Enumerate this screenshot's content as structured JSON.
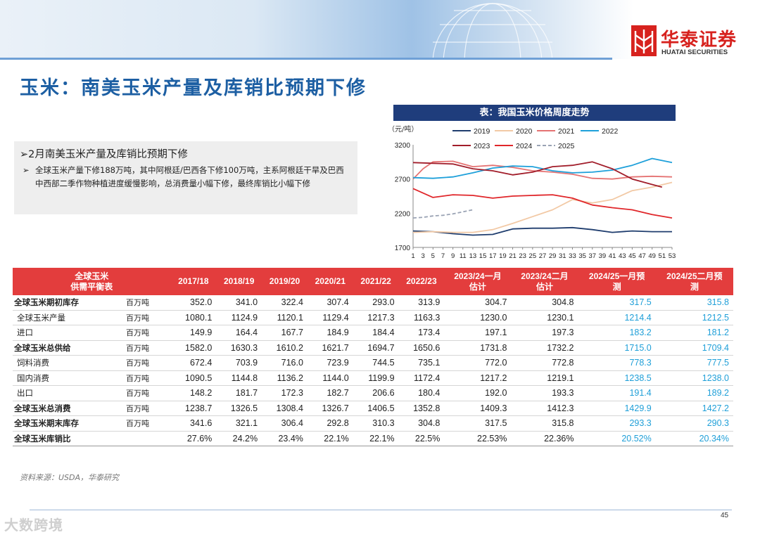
{
  "header": {
    "logo_cn": "华泰证券",
    "logo_en": "HUATAI SECURITIES",
    "brand_color": "#d7221e"
  },
  "title": "玉米：南美玉米产量及库销比预期下修",
  "bullets": {
    "main": "2月南美玉米产量及库销比预期下修",
    "sub": "全球玉米产量下修188万吨，其中阿根廷/巴西各下修100万吨，主系阿根廷干旱及巴西中西部二季作物种植进度缓慢影响，总消费量小幅下修，最终库销比小幅下修"
  },
  "chart": {
    "title": "表：我国玉米价格周度走势",
    "unit": "（元/吨）"
  },
  "chart_data": {
    "type": "line",
    "title": "表：我国玉米价格周度走势",
    "ylabel": "（元/吨）",
    "ylim": [
      1700,
      3200
    ],
    "yticks": [
      1700,
      2200,
      2700,
      3200
    ],
    "xlim": [
      1,
      53
    ],
    "xticks": [
      1,
      3,
      5,
      7,
      9,
      11,
      13,
      15,
      17,
      19,
      21,
      23,
      25,
      27,
      29,
      31,
      33,
      35,
      37,
      39,
      41,
      43,
      45,
      47,
      49,
      51,
      53
    ],
    "legend": "top",
    "series": [
      {
        "name": "2019",
        "color": "#1f3d6e",
        "dash": false,
        "x": [
          1,
          5,
          9,
          13,
          17,
          21,
          25,
          29,
          33,
          37,
          41,
          45,
          49,
          53
        ],
        "y": [
          1940,
          1930,
          1900,
          1880,
          1890,
          1970,
          1980,
          1980,
          1990,
          1960,
          1920,
          1940,
          1930,
          1930
        ]
      },
      {
        "name": "2020",
        "color": "#f2c9a5",
        "dash": false,
        "x": [
          1,
          5,
          9,
          13,
          17,
          21,
          25,
          29,
          33,
          37,
          41,
          45,
          49,
          53
        ],
        "y": [
          1920,
          1930,
          1920,
          1920,
          1960,
          2050,
          2150,
          2250,
          2400,
          2350,
          2400,
          2530,
          2580,
          2650
        ]
      },
      {
        "name": "2021",
        "color": "#e57373",
        "dash": false,
        "x": [
          1,
          3,
          5,
          9,
          13,
          17,
          21,
          25,
          29,
          33,
          37,
          41,
          45,
          49,
          53
        ],
        "y": [
          2700,
          2850,
          2950,
          2960,
          2880,
          2900,
          2870,
          2820,
          2800,
          2770,
          2710,
          2700,
          2730,
          2740,
          2730
        ]
      },
      {
        "name": "2022",
        "color": "#1ea0da",
        "dash": false,
        "x": [
          1,
          5,
          9,
          13,
          17,
          21,
          25,
          29,
          33,
          37,
          41,
          45,
          49,
          53
        ],
        "y": [
          2720,
          2710,
          2730,
          2790,
          2860,
          2890,
          2880,
          2820,
          2790,
          2800,
          2830,
          2900,
          3000,
          2940
        ]
      },
      {
        "name": "2023",
        "color": "#a11d2a",
        "dash": false,
        "x": [
          1,
          5,
          9,
          13,
          17,
          21,
          25,
          29,
          33,
          37,
          41,
          45,
          49,
          51
        ],
        "y": [
          2940,
          2930,
          2920,
          2850,
          2820,
          2760,
          2800,
          2880,
          2900,
          2950,
          2850,
          2700,
          2620,
          2580
        ]
      },
      {
        "name": "2024",
        "color": "#e0262a",
        "dash": false,
        "x": [
          1,
          5,
          9,
          13,
          17,
          21,
          25,
          29,
          33,
          37,
          41,
          45,
          49,
          53
        ],
        "y": [
          2560,
          2430,
          2470,
          2460,
          2420,
          2450,
          2460,
          2470,
          2420,
          2320,
          2280,
          2250,
          2180,
          2130
        ]
      },
      {
        "name": "2025",
        "color": "#9aa3b4",
        "dash": true,
        "x": [
          1,
          3,
          5,
          7,
          9,
          11,
          13
        ],
        "y": [
          2130,
          2140,
          2160,
          2170,
          2190,
          2220,
          2250
        ]
      }
    ]
  },
  "table": {
    "header_first": "全球玉米\n供需平衡表",
    "columns": [
      "2017/18",
      "2018/19",
      "2019/20",
      "2020/21",
      "2021/22",
      "2022/23",
      "2023/24一月\n估计",
      "2023/24二月\n估计",
      "2024/25一月预\n测",
      "2024/25二月预\n测"
    ],
    "rows": [
      {
        "label": "全球玉米期初库存",
        "bold": true,
        "unit": "百万吨",
        "values": [
          "352.0",
          "341.0",
          "322.4",
          "307.4",
          "293.0",
          "313.9",
          "304.7",
          "304.8",
          "317.5",
          "315.8"
        ]
      },
      {
        "label": "全球玉米产量",
        "bold": false,
        "unit": "百万吨",
        "values": [
          "1080.1",
          "1124.9",
          "1120.1",
          "1129.4",
          "1217.3",
          "1163.3",
          "1230.0",
          "1230.1",
          "1214.4",
          "1212.5"
        ]
      },
      {
        "label": "进口",
        "bold": false,
        "unit": "百万吨",
        "values": [
          "149.9",
          "164.4",
          "167.7",
          "184.9",
          "184.4",
          "173.4",
          "197.1",
          "197.3",
          "183.2",
          "181.2"
        ]
      },
      {
        "label": "全球玉米总供给",
        "bold": true,
        "unit": "百万吨",
        "values": [
          "1582.0",
          "1630.3",
          "1610.2",
          "1621.7",
          "1694.7",
          "1650.6",
          "1731.8",
          "1732.2",
          "1715.0",
          "1709.4"
        ]
      },
      {
        "label": "饲料消费",
        "bold": false,
        "unit": "百万吨",
        "values": [
          "672.4",
          "703.9",
          "716.0",
          "723.9",
          "744.5",
          "735.1",
          "772.0",
          "772.8",
          "778.3",
          "777.5"
        ]
      },
      {
        "label": "国内消费",
        "bold": false,
        "unit": "百万吨",
        "values": [
          "1090.5",
          "1144.8",
          "1136.2",
          "1144.0",
          "1199.9",
          "1172.4",
          "1217.2",
          "1219.1",
          "1238.5",
          "1238.0"
        ]
      },
      {
        "label": "出口",
        "bold": false,
        "unit": "百万吨",
        "values": [
          "148.2",
          "181.7",
          "172.3",
          "182.7",
          "206.6",
          "180.4",
          "192.0",
          "193.3",
          "191.4",
          "189.2"
        ]
      },
      {
        "label": "全球玉米总消费",
        "bold": true,
        "unit": "百万吨",
        "values": [
          "1238.7",
          "1326.5",
          "1308.4",
          "1326.7",
          "1406.5",
          "1352.8",
          "1409.3",
          "1412.3",
          "1429.9",
          "1427.2"
        ]
      },
      {
        "label": "全球玉米期末库存",
        "bold": true,
        "unit": "百万吨",
        "values": [
          "341.6",
          "321.1",
          "306.4",
          "292.8",
          "310.3",
          "304.8",
          "317.5",
          "315.8",
          "293.3",
          "290.3"
        ]
      },
      {
        "label": "全球玉米库销比",
        "bold": true,
        "unit": "",
        "values": [
          "27.6%",
          "24.2%",
          "23.4%",
          "22.1%",
          "22.1%",
          "22.5%",
          "22.53%",
          "22.36%",
          "20.52%",
          "20.34%"
        ]
      }
    ],
    "header_color": "#e33d3d",
    "forecast_color": "#1f9fd8"
  },
  "source": "资料来源：USDA，华泰研究",
  "page_number": "45",
  "watermark": "大数跨境"
}
